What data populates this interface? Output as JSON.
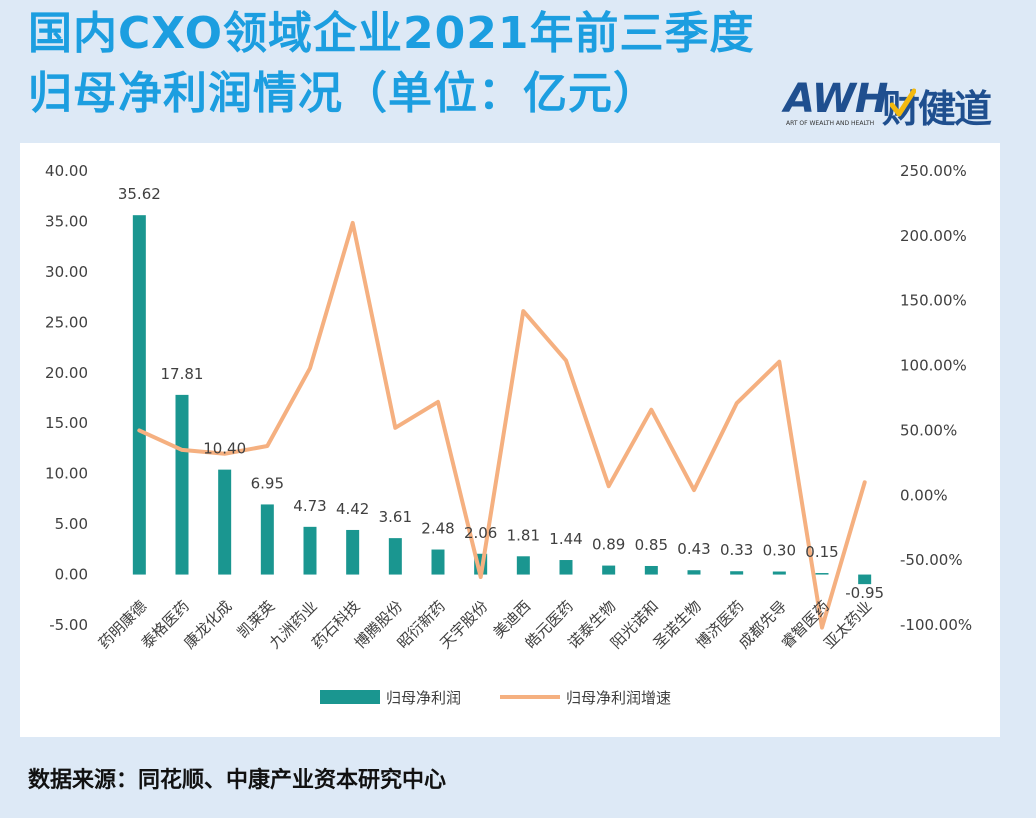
{
  "title": {
    "line1": "国内CXO领域企业2021年前三季度",
    "line2": "归母净利润情况（单位：亿元）"
  },
  "logo": {
    "mark": "AWH",
    "name": "财健道",
    "tagline": "ART OF WEALTH AND HEALTH"
  },
  "source": "数据来源：同花顺、中康产业资本研究中心",
  "colors": {
    "bar": "#1a9690",
    "line": "#f5b080",
    "title": "#1c9ee0",
    "background": "#dde9f6",
    "logo": "#1f4f8f",
    "logo_check": "#f3b90f"
  },
  "chart_data": {
    "type": "bar+line",
    "categories": [
      "药明康德",
      "泰格医药",
      "康龙化成",
      "凯莱英",
      "九洲药业",
      "药石科技",
      "博腾股份",
      "昭衍新药",
      "天宇股份",
      "美迪西",
      "皓元医药",
      "诺泰生物",
      "阳光诺和",
      "圣诺生物",
      "博济医药",
      "成都先导",
      "睿智医药",
      "亚太药业"
    ],
    "series": [
      {
        "name": "归母净利润",
        "type": "bar",
        "axis": "left",
        "values": [
          35.62,
          17.81,
          10.4,
          6.95,
          4.73,
          4.42,
          3.61,
          2.48,
          2.06,
          1.81,
          1.44,
          0.89,
          0.85,
          0.43,
          0.33,
          0.3,
          0.15,
          -0.95
        ],
        "labels": [
          "35.62",
          "17.81",
          "10.40",
          "6.95",
          "4.73",
          "4.42",
          "3.61",
          "2.48",
          "2.06",
          "1.81",
          "1.44",
          "0.89",
          "0.85",
          "0.43",
          "0.33",
          "0.30",
          "0.15",
          "-0.95"
        ]
      },
      {
        "name": "归母净利润增速",
        "type": "line",
        "axis": "right",
        "unit": "%",
        "values": [
          50,
          35,
          32,
          38,
          98,
          210,
          52,
          72,
          -63,
          142,
          104,
          7,
          66,
          4,
          71,
          103,
          -102,
          10
        ]
      }
    ],
    "left_axis": {
      "min": -5,
      "max": 40,
      "ticks": [
        "-5.00",
        "0.00",
        "5.00",
        "10.00",
        "15.00",
        "20.00",
        "25.00",
        "30.00",
        "35.00",
        "40.00"
      ]
    },
    "right_axis": {
      "min": -100,
      "max": 250,
      "ticks": [
        "-100.00%",
        "-50.00%",
        "0.00%",
        "50.00%",
        "100.00%",
        "150.00%",
        "200.00%",
        "250.00%"
      ]
    },
    "legend_position": "bottom",
    "grid": false
  }
}
